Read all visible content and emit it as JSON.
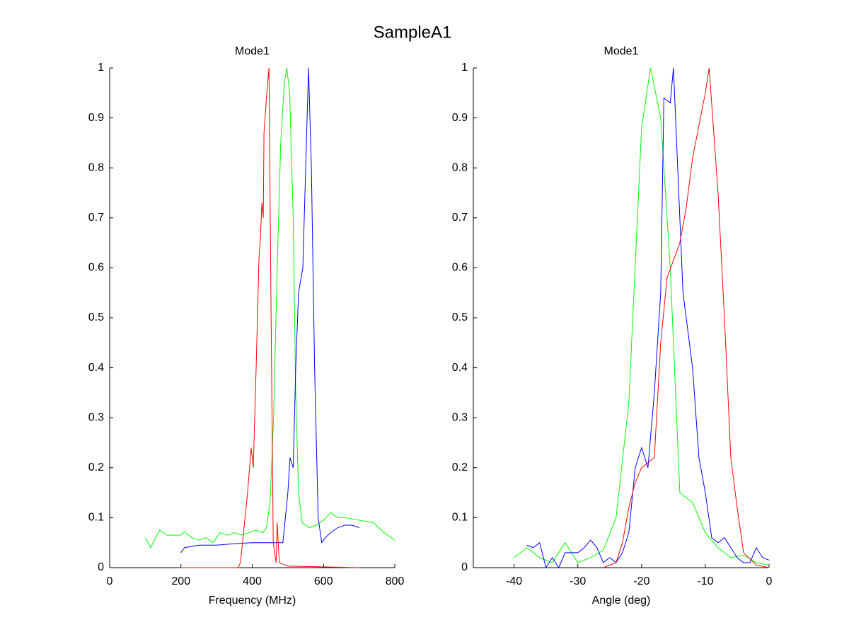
{
  "title": "SampleA1",
  "chart_data": [
    {
      "type": "line",
      "title": "Mode1",
      "xlabel": "Frequency (MHz)",
      "xlim": [
        0,
        800
      ],
      "ylim": [
        0,
        1
      ],
      "xticks": [
        0,
        200,
        400,
        600,
        800
      ],
      "yticks": [
        0,
        0.1,
        0.2,
        0.3,
        0.4,
        0.5,
        0.6,
        0.7,
        0.8,
        0.9,
        1
      ],
      "series": [
        {
          "color": "#00ff00",
          "x": [
            100,
            115,
            140,
            160,
            200,
            210,
            230,
            250,
            270,
            290,
            310,
            330,
            350,
            370,
            390,
            410,
            430,
            440,
            450,
            460,
            470,
            480,
            490,
            497,
            505,
            515,
            522,
            530,
            540,
            560,
            580,
            600,
            620,
            640,
            660,
            700,
            740,
            770,
            800
          ],
          "values": [
            0.06,
            0.04,
            0.075,
            0.065,
            0.065,
            0.072,
            0.06,
            0.055,
            0.06,
            0.05,
            0.07,
            0.065,
            0.07,
            0.065,
            0.07,
            0.075,
            0.07,
            0.08,
            0.13,
            0.3,
            0.6,
            0.85,
            0.97,
            1.0,
            0.95,
            0.7,
            0.35,
            0.15,
            0.09,
            0.08,
            0.085,
            0.095,
            0.11,
            0.1,
            0.1,
            0.095,
            0.09,
            0.07,
            0.055
          ]
        },
        {
          "color": "#0000ff",
          "x": [
            200,
            210,
            250,
            300,
            350,
            400,
            440,
            460,
            486,
            500,
            506,
            515,
            522,
            530,
            542,
            550,
            558,
            566,
            575,
            585,
            595,
            605,
            620,
            640,
            660,
            680,
            700
          ],
          "values": [
            0.03,
            0.04,
            0.045,
            0.045,
            0.048,
            0.05,
            0.05,
            0.05,
            0.05,
            0.15,
            0.22,
            0.2,
            0.4,
            0.55,
            0.6,
            0.8,
            1.0,
            0.8,
            0.4,
            0.1,
            0.05,
            0.06,
            0.07,
            0.08,
            0.085,
            0.085,
            0.08
          ]
        },
        {
          "color": "#ff0000",
          "x": [
            200,
            360,
            367,
            387,
            397,
            403,
            411,
            419,
            423,
            427,
            431,
            433,
            441,
            447,
            453,
            459,
            467,
            470,
            476,
            500,
            700
          ],
          "values": [
            0,
            0,
            0.01,
            0.15,
            0.24,
            0.2,
            0.4,
            0.62,
            0.66,
            0.73,
            0.7,
            0.87,
            0.95,
            1.0,
            0.5,
            0.05,
            0.01,
            0.09,
            0.01,
            0.003,
            0
          ]
        }
      ]
    },
    {
      "type": "line",
      "title": "Mode1",
      "xlabel": "Angle (deg)",
      "xlim": [
        -46.4,
        0
      ],
      "ylim": [
        0,
        1
      ],
      "xticks": [
        -40,
        -30,
        -20,
        -10,
        0
      ],
      "yticks": [
        0,
        0.1,
        0.2,
        0.3,
        0.4,
        0.5,
        0.6,
        0.7,
        0.8,
        0.9,
        1
      ],
      "series": [
        {
          "color": "#00ff00",
          "x": [
            -40,
            -38,
            -36,
            -34,
            -32,
            -30,
            -28,
            -26,
            -24,
            -22,
            -20,
            -18.6,
            -17,
            -15.5,
            -14,
            -12,
            -10,
            -8,
            -6,
            -4,
            -2,
            0
          ],
          "values": [
            0.02,
            0.04,
            0.02,
            0.01,
            0.05,
            0.01,
            0.02,
            0.035,
            0.1,
            0.33,
            0.88,
            1.0,
            0.9,
            0.6,
            0.15,
            0.13,
            0.07,
            0.04,
            0.02,
            0.025,
            0.01,
            0.005
          ]
        },
        {
          "color": "#0000ff",
          "x": [
            -38,
            -37,
            -36,
            -35,
            -34,
            -33,
            -32,
            -31,
            -30,
            -29,
            -28,
            -27,
            -26,
            -25,
            -24,
            -23,
            -22,
            -21,
            -20,
            -19,
            -18,
            -17,
            -16.5,
            -15.5,
            -15,
            -13.5,
            -12,
            -11,
            -10,
            -9,
            -8,
            -7,
            -6,
            -5,
            -4,
            -3,
            -2,
            -1,
            0
          ],
          "values": [
            0.045,
            0.04,
            0.05,
            0,
            0.02,
            0,
            0.03,
            0.03,
            0.03,
            0.04,
            0.055,
            0.04,
            0.01,
            0.02,
            0.01,
            0.03,
            0.07,
            0.2,
            0.24,
            0.2,
            0.35,
            0.55,
            0.94,
            0.93,
            1.0,
            0.55,
            0.4,
            0.22,
            0.15,
            0.06,
            0.05,
            0.06,
            0.04,
            0.02,
            0.01,
            0.01,
            0.04,
            0.02,
            0.015
          ]
        },
        {
          "color": "#ff0000",
          "x": [
            -26,
            -24,
            -23,
            -22,
            -21,
            -20,
            -18,
            -17,
            -16,
            -14,
            -13,
            -12,
            -10,
            -9.4,
            -8,
            -7,
            -6,
            -5,
            -4,
            -2,
            0
          ],
          "values": [
            0,
            0.01,
            0.05,
            0.12,
            0.17,
            0.2,
            0.22,
            0.45,
            0.58,
            0.65,
            0.72,
            0.82,
            0.95,
            1.0,
            0.75,
            0.5,
            0.22,
            0.12,
            0.03,
            0.005,
            0
          ]
        }
      ]
    }
  ]
}
